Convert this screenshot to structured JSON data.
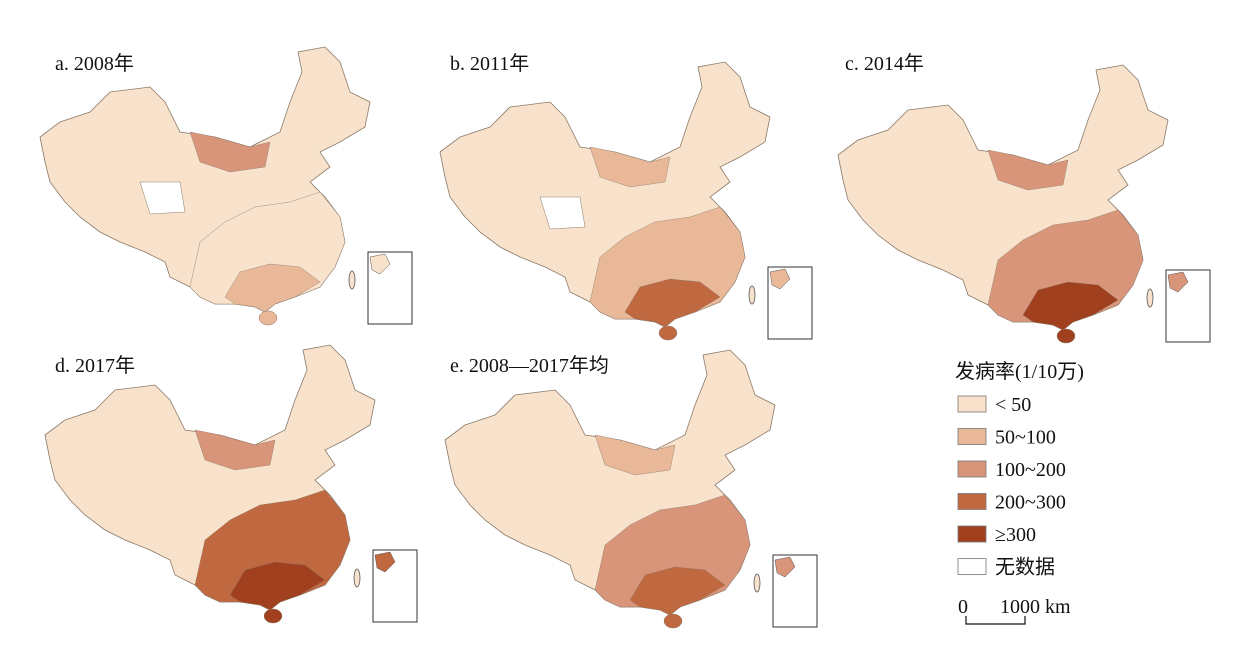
{
  "panels": [
    {
      "title": "a. 2008年"
    },
    {
      "title": "b. 2011年"
    },
    {
      "title": "c. 2014年"
    },
    {
      "title": "d. 2017年"
    },
    {
      "title": "e. 2008—2017年均"
    }
  ],
  "legend": {
    "title": "发病率(1/10万)",
    "items": [
      {
        "label": "< 50",
        "color": "#f8e2cb"
      },
      {
        "label": "50~100",
        "color": "#e9b899"
      },
      {
        "label": "100~200",
        "color": "#d9957a"
      },
      {
        "label": "200~300",
        "color": "#c0683f"
      },
      {
        "label": "≥300",
        "color": "#a0401f"
      },
      {
        "label": "无数据",
        "color": "#ffffff"
      }
    ]
  },
  "scale_bar": {
    "start": "0",
    "end": "1000 km"
  }
}
